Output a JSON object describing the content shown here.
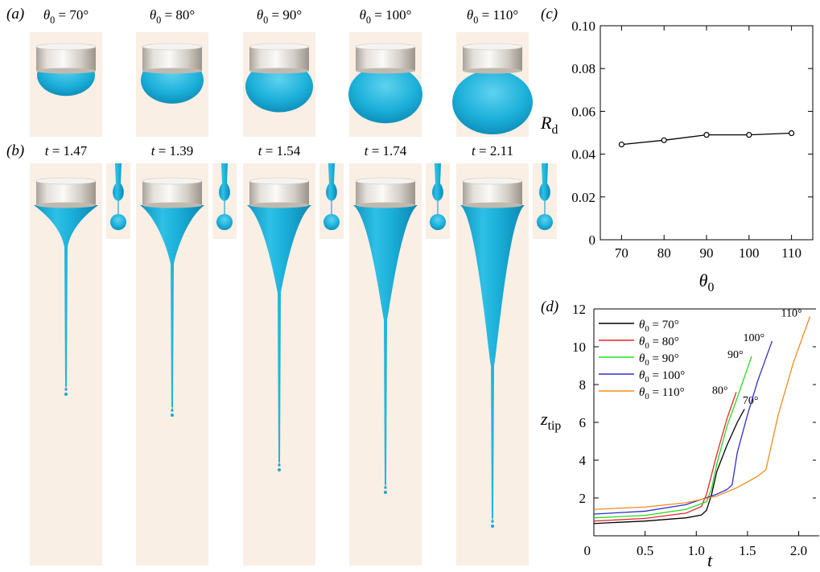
{
  "panel_labels": [
    "(a)",
    "(b)",
    "(c)",
    "(d)"
  ],
  "panel_a": {
    "angles": [
      {
        "symbol": "θ",
        "sub": "0",
        "value": " = 70°"
      },
      {
        "symbol": "θ",
        "sub": "0",
        "value": " = 80°"
      },
      {
        "symbol": "θ",
        "sub": "0",
        "value": " = 90°"
      },
      {
        "symbol": "θ",
        "sub": "0",
        "value": " = 100°"
      },
      {
        "symbol": "θ",
        "sub": "0",
        "value": " = 110°"
      }
    ],
    "drop_color": "#20b1d8",
    "background_color": "#f9efe4"
  },
  "panel_b": {
    "times": [
      {
        "symbol": "t",
        "value": " = 1.47"
      },
      {
        "symbol": "t",
        "value": " = 1.39"
      },
      {
        "symbol": "t",
        "value": " = 1.54"
      },
      {
        "symbol": "t",
        "value": " = 1.74"
      },
      {
        "symbol": "t",
        "value": " = 2.11"
      }
    ]
  },
  "chart_data": [
    {
      "type": "line",
      "panel": "(c)",
      "xlabel": "θ",
      "xlabel_sub": "0",
      "ylabel": "R",
      "ylabel_sub": "d",
      "x": [
        70,
        80,
        90,
        100,
        110
      ],
      "y": [
        0.0445,
        0.0465,
        0.049,
        0.049,
        0.0498
      ],
      "xlim": [
        65,
        115
      ],
      "ylim": [
        0,
        0.1
      ],
      "xticks": [
        "70",
        "80",
        "90",
        "100",
        "110"
      ],
      "yticks": [
        "0",
        "0.02",
        "0.04",
        "0.06",
        "0.08",
        "0.10"
      ],
      "marker": "open-circle",
      "grid": false
    },
    {
      "type": "line",
      "panel": "(d)",
      "xlabel": "t",
      "ylabel": "z",
      "ylabel_sub": "tip",
      "xlim": [
        0,
        2.2
      ],
      "ylim": [
        0,
        12
      ],
      "xticks": [
        "0",
        "0.5",
        "1.0",
        "1.5",
        "2.0"
      ],
      "yticks": [
        "2",
        "4",
        "6",
        "8",
        "10",
        "12"
      ],
      "legend_position": "top-left",
      "grid": false,
      "series": [
        {
          "name": "θ0 = 70°",
          "legend_symbol": "θ",
          "legend_sub": "0",
          "legend_value": " = 70°",
          "color": "#000000",
          "end_label": "70°",
          "x": [
            0,
            0.5,
            0.9,
            1.05,
            1.1,
            1.15,
            1.2,
            1.3,
            1.4,
            1.47
          ],
          "y": [
            0.65,
            0.78,
            0.95,
            1.1,
            1.35,
            2.2,
            3.4,
            4.8,
            6.0,
            6.7
          ]
        },
        {
          "name": "θ0 = 80°",
          "legend_symbol": "θ",
          "legend_sub": "0",
          "legend_value": " = 80°",
          "color": "#e8262a",
          "end_label": "80°",
          "x": [
            0,
            0.5,
            0.9,
            1.05,
            1.1,
            1.2,
            1.3,
            1.39
          ],
          "y": [
            0.78,
            0.92,
            1.2,
            1.55,
            2.2,
            4.3,
            6.2,
            7.6
          ]
        },
        {
          "name": "θ0 = 90°",
          "legend_symbol": "θ",
          "legend_sub": "0",
          "legend_value": " = 90°",
          "color": "#22dd22",
          "end_label": "90°",
          "x": [
            0,
            0.5,
            0.9,
            1.1,
            1.15,
            1.2,
            1.3,
            1.4,
            1.54
          ],
          "y": [
            0.95,
            1.08,
            1.4,
            1.8,
            2.5,
            3.8,
            5.8,
            7.3,
            9.5
          ]
        },
        {
          "name": "θ0 = 100°",
          "legend_symbol": "θ",
          "legend_sub": "0",
          "legend_value": " = 100°",
          "color": "#2e2ec8",
          "end_label": "100°",
          "x": [
            0,
            0.5,
            0.9,
            1.2,
            1.3,
            1.35,
            1.4,
            1.5,
            1.6,
            1.74
          ],
          "y": [
            1.15,
            1.3,
            1.65,
            2.2,
            2.45,
            2.7,
            4.4,
            6.4,
            8.2,
            10.3
          ]
        },
        {
          "name": "θ0 = 110°",
          "legend_symbol": "θ",
          "legend_sub": "0",
          "legend_value": " = 110°",
          "color": "#f08c1c",
          "end_label": "110°",
          "x": [
            0,
            0.5,
            0.9,
            1.2,
            1.4,
            1.6,
            1.68,
            1.8,
            1.95,
            2.11
          ],
          "y": [
            1.4,
            1.52,
            1.75,
            2.1,
            2.55,
            3.15,
            3.5,
            6.4,
            9.2,
            11.6
          ]
        }
      ]
    }
  ]
}
